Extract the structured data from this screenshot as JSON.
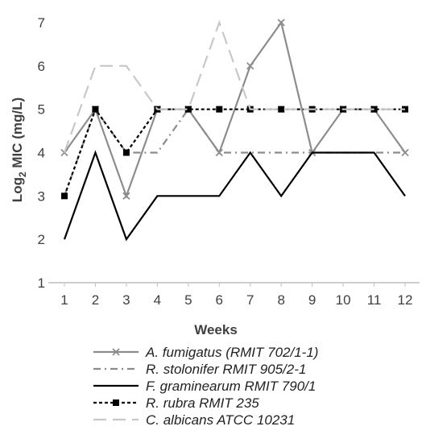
{
  "chart_data": {
    "type": "line",
    "title": "",
    "xlabel": "Weeks",
    "ylabel_main": "Log",
    "ylabel_sub": "2",
    "ylabel_rest": " MIC (mg/L)",
    "categories": [
      "1",
      "2",
      "3",
      "4",
      "5",
      "6",
      "7",
      "8",
      "9",
      "10",
      "11",
      "12"
    ],
    "ylim": [
      1,
      7
    ],
    "yticks": [
      "1",
      "2",
      "3",
      "4",
      "5",
      "6",
      "7"
    ],
    "grid": false,
    "legend_placement": "bottom",
    "series": [
      {
        "name": "A. fumigatus (RMIT 702/1-1)",
        "values": [
          4,
          5,
          3,
          5,
          5,
          4,
          6,
          7,
          4,
          5,
          5,
          4
        ],
        "color": "#8c8c8c",
        "style": "solid",
        "marker": "x"
      },
      {
        "name": "R. stolonifer RMIT 905/2-1",
        "values": [
          3,
          5,
          4,
          4,
          5,
          4,
          4,
          4,
          4,
          4,
          4,
          4
        ],
        "color": "#8c8c8c",
        "style": "dashdot",
        "marker": "none"
      },
      {
        "name": "F. graminearum RMIT 790/1",
        "values": [
          2,
          4,
          2,
          3,
          3,
          3,
          4,
          3,
          4,
          4,
          4,
          3
        ],
        "color": "#000000",
        "style": "solid",
        "marker": "none"
      },
      {
        "name": "R. rubra RMIT 235",
        "values": [
          3,
          5,
          4,
          5,
          5,
          5,
          5,
          5,
          5,
          5,
          5,
          5
        ],
        "color": "#000000",
        "style": "dotted",
        "marker": "square"
      },
      {
        "name": "C. albicans ATCC 10231",
        "values": [
          4,
          6,
          6,
          5,
          5,
          7,
          5,
          5,
          5,
          5,
          5,
          5
        ],
        "color": "#c8c8c8",
        "style": "longdash",
        "marker": "none"
      }
    ]
  }
}
